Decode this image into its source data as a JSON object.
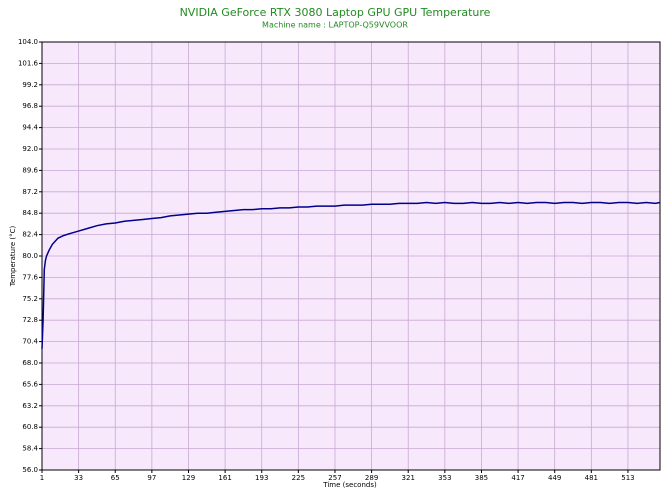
{
  "chart_data": {
    "type": "line",
    "title": "NVIDIA GeForce RTX 3080 Laptop GPU GPU Temperature",
    "subtitle": "Machine name : LAPTOP-Q59VVOOR",
    "x_label": "Time (seconds)",
    "y_label": "Temperature (°C)",
    "xlim": [
      1,
      541
    ],
    "ylim": [
      56,
      104
    ],
    "xticks": [
      1,
      33,
      65,
      97,
      129,
      161,
      193,
      225,
      257,
      289,
      321,
      353,
      385,
      417,
      449,
      481,
      513
    ],
    "yticks": [
      {
        "value": 56,
        "label": "56.0"
      },
      58.4,
      60.8,
      63.2,
      65.6,
      {
        "value": 68,
        "label": "68.0"
      },
      70.4,
      72.8,
      75.2,
      77.6,
      {
        "value": 80,
        "label": "80.0"
      },
      82.4,
      84.8,
      87.2,
      89.6,
      {
        "value": 92,
        "label": "92.0"
      },
      94.4,
      96.8,
      99.2,
      101.6,
      {
        "value": 104,
        "label": "104.0"
      }
    ],
    "grid": true,
    "x": [
      1,
      2,
      3,
      4,
      5,
      7,
      10,
      15,
      20,
      25,
      33,
      41,
      49,
      57,
      65,
      73,
      81,
      89,
      97,
      105,
      113,
      121,
      129,
      137,
      145,
      153,
      161,
      169,
      177,
      185,
      193,
      201,
      209,
      217,
      225,
      233,
      241,
      249,
      257,
      265,
      273,
      281,
      289,
      297,
      305,
      313,
      321,
      329,
      337,
      345,
      353,
      361,
      369,
      377,
      385,
      393,
      401,
      409,
      417,
      425,
      433,
      441,
      449,
      457,
      465,
      473,
      481,
      489,
      497,
      505,
      513,
      521,
      529,
      537,
      541
    ],
    "series": [
      {
        "name": "GPU Temperature",
        "color": "#00008b",
        "values": [
          69.6,
          73,
          78.5,
          79.5,
          80.0,
          80.6,
          81.3,
          82.0,
          82.3,
          82.5,
          82.8,
          83.1,
          83.4,
          83.6,
          83.7,
          83.9,
          84.0,
          84.1,
          84.2,
          84.3,
          84.5,
          84.6,
          84.7,
          84.8,
          84.8,
          84.9,
          85.0,
          85.1,
          85.2,
          85.2,
          85.3,
          85.3,
          85.4,
          85.4,
          85.5,
          85.5,
          85.6,
          85.6,
          85.6,
          85.7,
          85.7,
          85.7,
          85.8,
          85.8,
          85.8,
          85.9,
          85.9,
          85.9,
          86.0,
          85.9,
          86.0,
          85.9,
          85.9,
          86.0,
          85.9,
          85.9,
          86.0,
          85.9,
          86.0,
          85.9,
          86.0,
          86.0,
          85.9,
          86.0,
          86.0,
          85.9,
          86.0,
          86.0,
          85.9,
          86.0,
          86.0,
          85.9,
          86.0,
          85.9,
          86.0
        ]
      }
    ]
  }
}
